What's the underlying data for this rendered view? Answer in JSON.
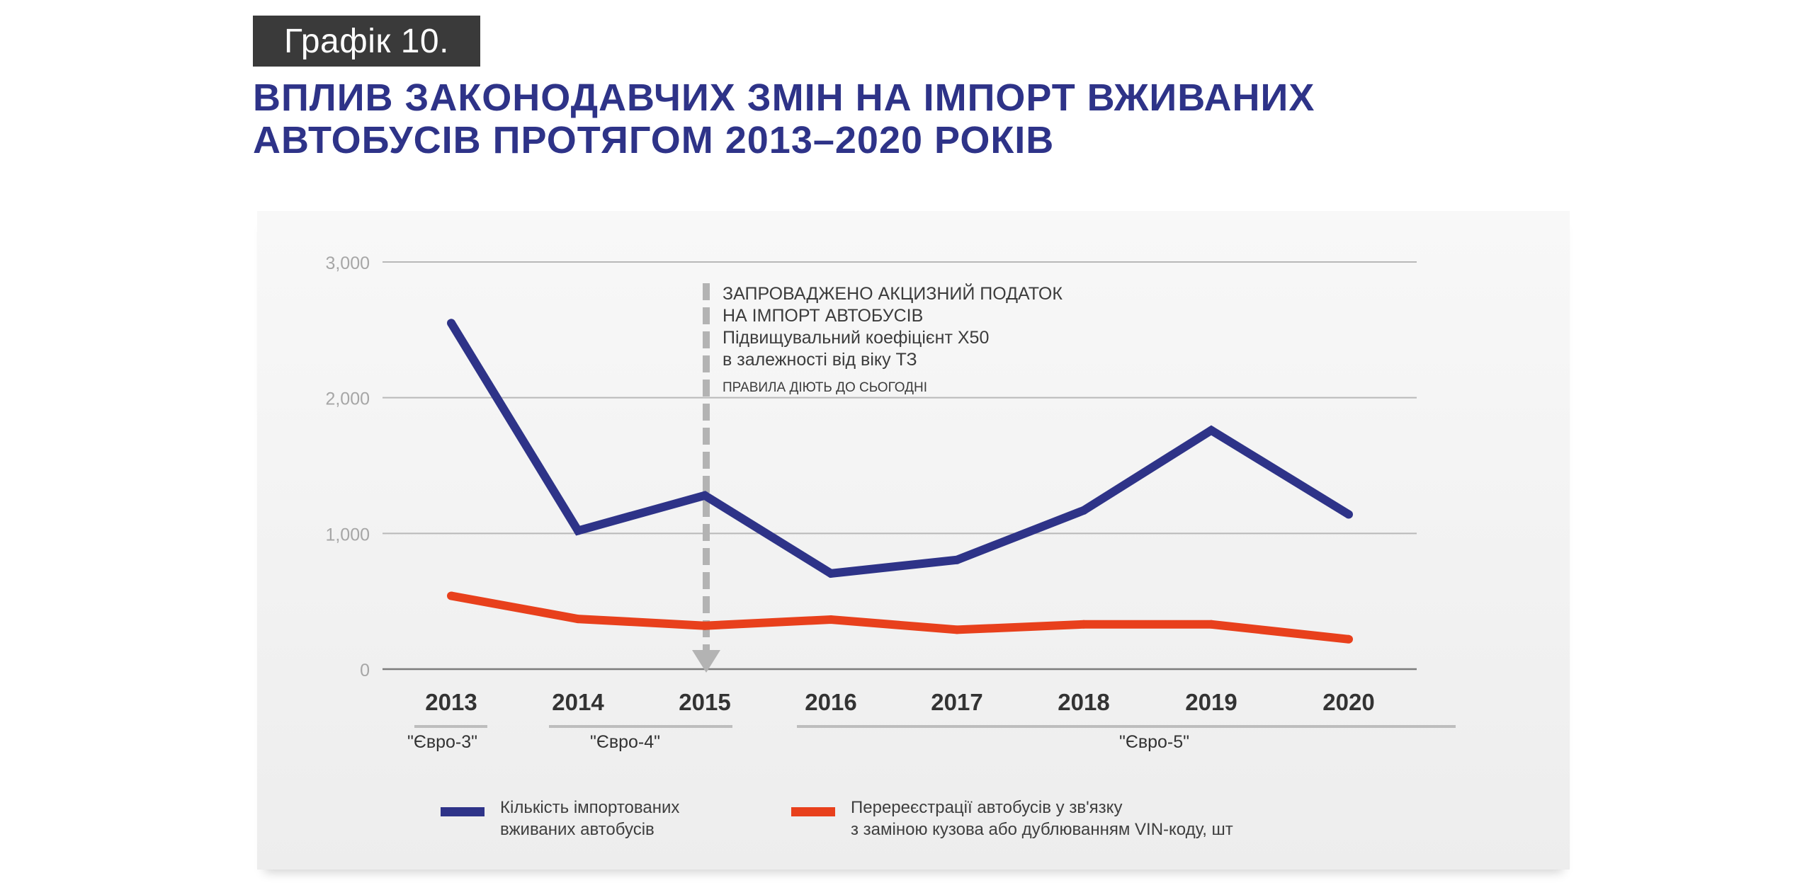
{
  "header": {
    "label": "Графік 10.",
    "title_line1": "ВПЛИВ ЗАКОНОДАВЧИХ ЗМІН НА ІМПОРТ ВЖИВАНИХ",
    "title_line2": "АВТОБУСІВ ПРОТЯГОМ 2013–2020 РОКІВ"
  },
  "annotation": {
    "line1": "ЗАПРОВАДЖЕНО АКЦИЗНИЙ ПОДАТОК",
    "line2": "НА ІМПОРТ АВТОБУСІВ",
    "line3": "Підвищувальний коефіцієнт Х50",
    "line4": "в залежності від віку ТЗ",
    "line5": "ПРАВИЛА ДІЮТЬ ДО СЬОГОДНІ"
  },
  "periods": [
    {
      "label": "\"Євро-3\""
    },
    {
      "label": "\"Євро-4\""
    },
    {
      "label": "\"Євро-5\""
    }
  ],
  "legend": {
    "imports": {
      "line1": "Кількість імпортованих",
      "line2": "вживаних автобусів"
    },
    "reregistrations": {
      "line1": "Перереєстрації автобусів у зв'язку",
      "line2": "з заміною кузова або дублюванням VIN-коду, шт"
    }
  },
  "colors": {
    "imports": "#2e3388",
    "reregistrations": "#e8401c",
    "title": "#2e3388",
    "grid": "#b9b9b9",
    "marker": "#b3b3b3"
  },
  "chart_data": {
    "type": "line",
    "x": [
      "2013",
      "2014",
      "2015",
      "2016",
      "2017",
      "2018",
      "2019",
      "2020"
    ],
    "series": [
      {
        "name": "Кількість імпортованих вживаних автобусів",
        "values": [
          2550,
          1020,
          1280,
          705,
          805,
          1170,
          1760,
          1140
        ]
      },
      {
        "name": "Перереєстрації автобусів у зв'язку з заміною кузова або дублюванням VIN-коду, шт",
        "values": [
          540,
          370,
          320,
          365,
          290,
          330,
          330,
          220
        ]
      }
    ],
    "yticks": [
      "3,000",
      "2,000",
      "1,000",
      "0"
    ],
    "ylim": [
      0,
      3000
    ],
    "grid": true,
    "event_marker_year": "2015",
    "legend_position": "bottom"
  }
}
